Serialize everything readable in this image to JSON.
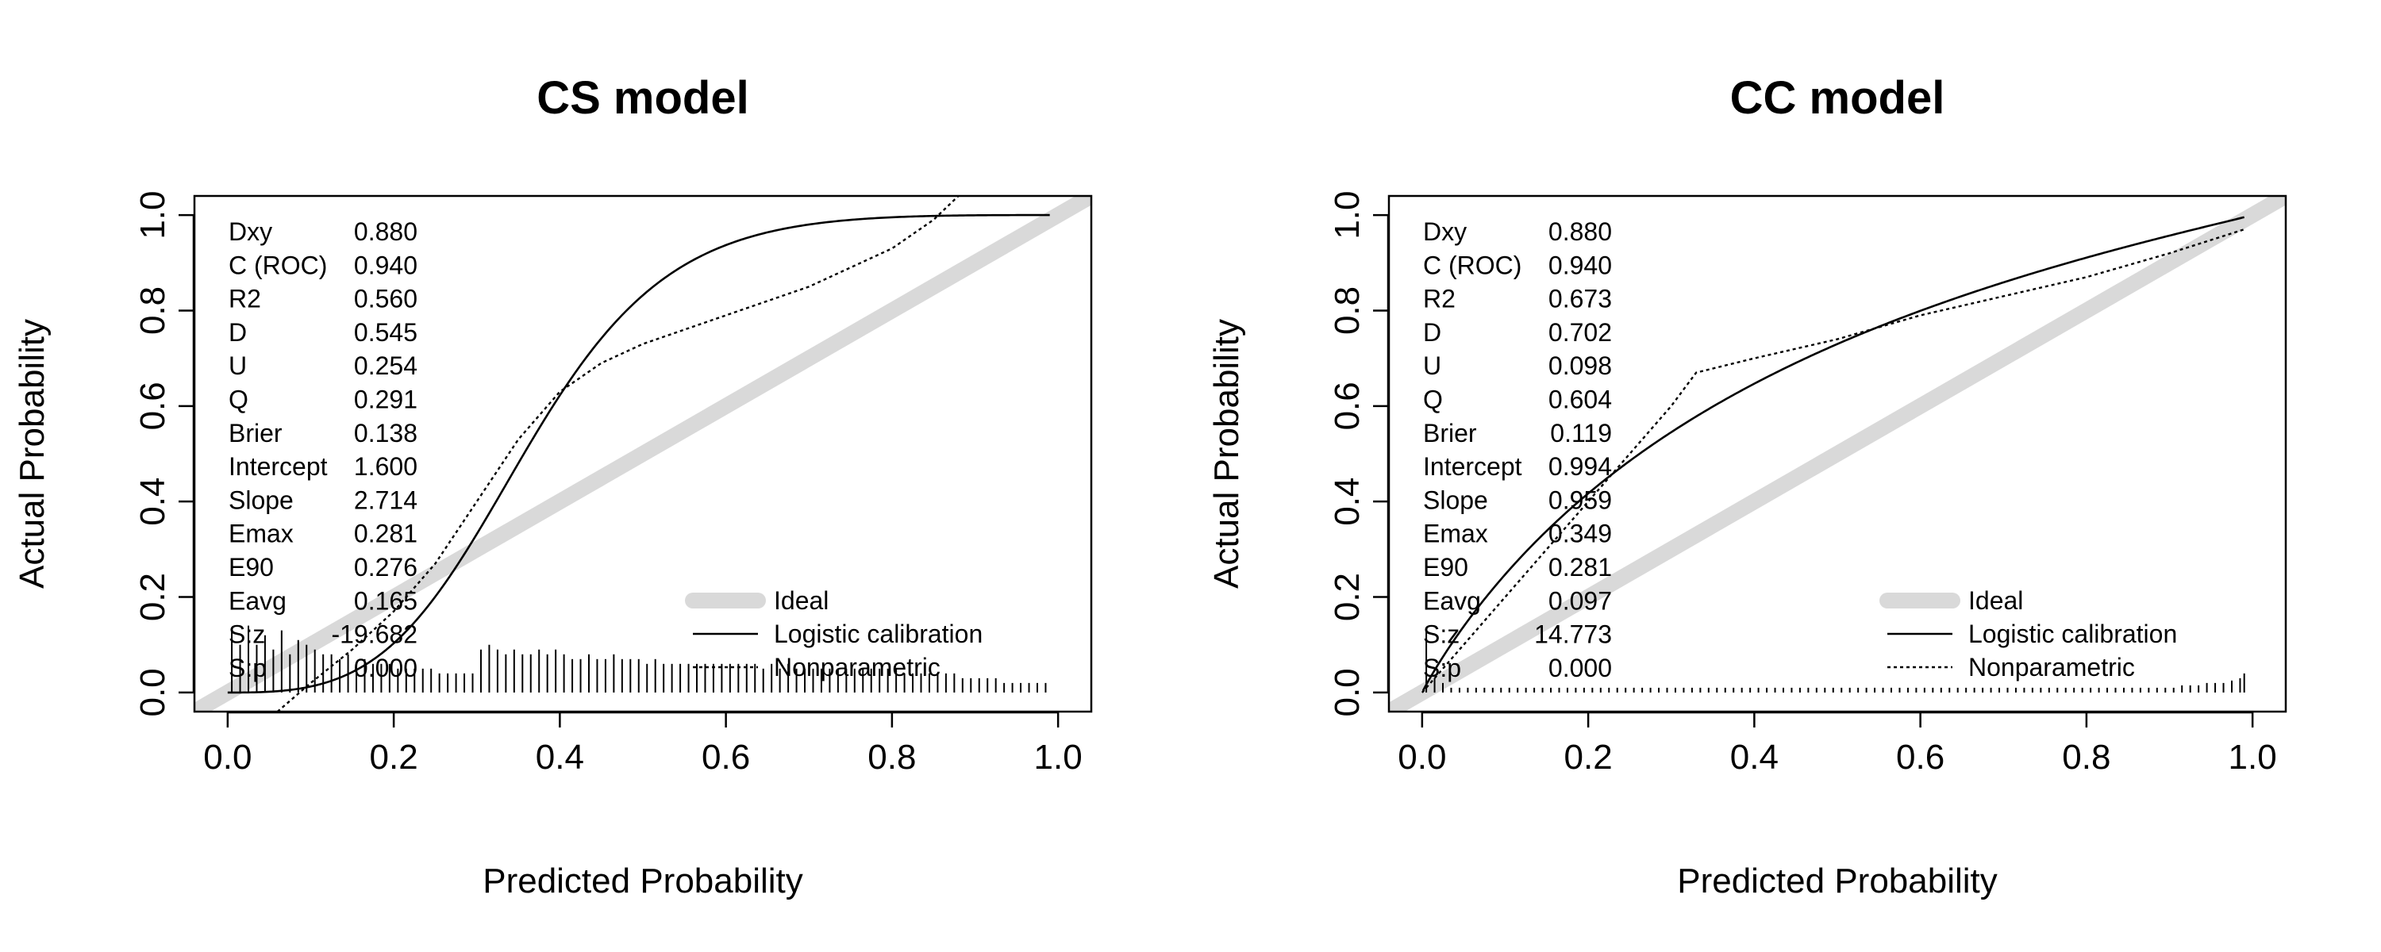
{
  "chart_data": [
    {
      "type": "line",
      "title": "CS model",
      "xlabel": "Predicted Probability",
      "ylabel": "Actual Probability",
      "xlim": [
        -0.04,
        1.04
      ],
      "ylim": [
        -0.04,
        1.04
      ],
      "xticks": [
        "0.0",
        "0.2",
        "0.4",
        "0.6",
        "0.8",
        "1.0"
      ],
      "yticks": [
        "0.0",
        "0.2",
        "0.4",
        "0.6",
        "0.8",
        "1.0"
      ],
      "stats": [
        {
          "label": "Dxy",
          "value": "0.880"
        },
        {
          "label": "C (ROC)",
          "value": "0.940"
        },
        {
          "label": "R2",
          "value": "0.560"
        },
        {
          "label": "D",
          "value": "0.545"
        },
        {
          "label": "U",
          "value": "0.254"
        },
        {
          "label": "Q",
          "value": "0.291"
        },
        {
          "label": "Brier",
          "value": "0.138"
        },
        {
          "label": "Intercept",
          "value": "1.600"
        },
        {
          "label": "Slope",
          "value": "2.714"
        },
        {
          "label": "Emax",
          "value": "0.281"
        },
        {
          "label": "E90",
          "value": "0.276"
        },
        {
          "label": "Eavg",
          "value": "0.165"
        },
        {
          "label": "S:z",
          "value": "-19.682"
        },
        {
          "label": "S:p",
          "value": "0.000"
        }
      ],
      "legend": {
        "position": "bottom-right",
        "items": [
          {
            "label": "Ideal",
            "style": "thick-gray"
          },
          {
            "label": "Logistic calibration",
            "style": "solid"
          },
          {
            "label": "Nonparametric",
            "style": "dotted"
          }
        ]
      },
      "series": [
        {
          "name": "Ideal",
          "x": [
            -0.04,
            1.04
          ],
          "y": [
            -0.04,
            1.04
          ]
        },
        {
          "name": "Logistic calibration",
          "logistic": {
            "intercept": 1.6,
            "slope": 2.714
          },
          "x_range": [
            0.0,
            0.99
          ]
        },
        {
          "name": "Nonparametric",
          "x": [
            0.06,
            0.1,
            0.15,
            0.2,
            0.25,
            0.3,
            0.35,
            0.4,
            0.45,
            0.5,
            0.55,
            0.6,
            0.65,
            0.7,
            0.75,
            0.8,
            0.85,
            0.88
          ],
          "y": [
            -0.04,
            0.02,
            0.09,
            0.17,
            0.27,
            0.4,
            0.53,
            0.63,
            0.69,
            0.73,
            0.76,
            0.79,
            0.82,
            0.85,
            0.89,
            0.93,
            0.99,
            1.04
          ]
        }
      ],
      "rug": {
        "x": [
          0.005,
          0.015,
          0.025,
          0.035,
          0.045,
          0.055,
          0.065,
          0.075,
          0.085,
          0.095,
          0.105,
          0.115,
          0.125,
          0.135,
          0.145,
          0.155,
          0.165,
          0.175,
          0.185,
          0.195,
          0.205,
          0.215,
          0.225,
          0.235,
          0.245,
          0.255,
          0.265,
          0.275,
          0.285,
          0.295,
          0.305,
          0.315,
          0.325,
          0.335,
          0.345,
          0.355,
          0.365,
          0.375,
          0.385,
          0.395,
          0.405,
          0.415,
          0.425,
          0.435,
          0.445,
          0.455,
          0.465,
          0.475,
          0.485,
          0.495,
          0.505,
          0.515,
          0.525,
          0.535,
          0.545,
          0.555,
          0.565,
          0.575,
          0.585,
          0.595,
          0.605,
          0.615,
          0.625,
          0.635,
          0.645,
          0.655,
          0.665,
          0.675,
          0.685,
          0.695,
          0.705,
          0.715,
          0.725,
          0.735,
          0.745,
          0.755,
          0.765,
          0.775,
          0.785,
          0.795,
          0.805,
          0.815,
          0.825,
          0.835,
          0.845,
          0.855,
          0.865,
          0.875,
          0.885,
          0.895,
          0.905,
          0.915,
          0.925,
          0.935,
          0.945,
          0.955,
          0.965,
          0.975,
          0.985
        ],
        "h": [
          0.13,
          0.1,
          0.14,
          0.1,
          0.12,
          0.09,
          0.13,
          0.08,
          0.11,
          0.1,
          0.09,
          0.08,
          0.08,
          0.07,
          0.08,
          0.06,
          0.07,
          0.06,
          0.06,
          0.06,
          0.05,
          0.05,
          0.05,
          0.05,
          0.05,
          0.04,
          0.04,
          0.04,
          0.04,
          0.04,
          0.09,
          0.1,
          0.09,
          0.08,
          0.09,
          0.08,
          0.08,
          0.09,
          0.08,
          0.09,
          0.08,
          0.07,
          0.07,
          0.08,
          0.07,
          0.07,
          0.08,
          0.07,
          0.07,
          0.07,
          0.06,
          0.07,
          0.06,
          0.06,
          0.06,
          0.06,
          0.06,
          0.06,
          0.06,
          0.06,
          0.06,
          0.06,
          0.06,
          0.06,
          0.05,
          0.06,
          0.05,
          0.06,
          0.05,
          0.05,
          0.05,
          0.05,
          0.05,
          0.05,
          0.05,
          0.05,
          0.05,
          0.05,
          0.05,
          0.05,
          0.05,
          0.04,
          0.04,
          0.04,
          0.04,
          0.04,
          0.04,
          0.04,
          0.03,
          0.03,
          0.03,
          0.03,
          0.03,
          0.02,
          0.02,
          0.02,
          0.02,
          0.02,
          0.02
        ]
      }
    },
    {
      "type": "line",
      "title": "CC model",
      "xlabel": "Predicted Probability",
      "ylabel": "Actual Probability",
      "xlim": [
        -0.04,
        1.04
      ],
      "ylim": [
        -0.04,
        1.04
      ],
      "xticks": [
        "0.0",
        "0.2",
        "0.4",
        "0.6",
        "0.8",
        "1.0"
      ],
      "yticks": [
        "0.0",
        "0.2",
        "0.4",
        "0.6",
        "0.8",
        "1.0"
      ],
      "stats": [
        {
          "label": "Dxy",
          "value": "0.880"
        },
        {
          "label": "C (ROC)",
          "value": "0.940"
        },
        {
          "label": "R2",
          "value": "0.673"
        },
        {
          "label": "D",
          "value": "0.702"
        },
        {
          "label": "U",
          "value": "0.098"
        },
        {
          "label": "Q",
          "value": "0.604"
        },
        {
          "label": "Brier",
          "value": "0.119"
        },
        {
          "label": "Intercept",
          "value": "0.994"
        },
        {
          "label": "Slope",
          "value": "0.959"
        },
        {
          "label": "Emax",
          "value": "0.349"
        },
        {
          "label": "E90",
          "value": "0.281"
        },
        {
          "label": "Eavg",
          "value": "0.097"
        },
        {
          "label": "S:z",
          "value": "14.773"
        },
        {
          "label": "S:p",
          "value": "0.000"
        }
      ],
      "legend": {
        "position": "bottom-right",
        "items": [
          {
            "label": "Ideal",
            "style": "thick-gray"
          },
          {
            "label": "Logistic calibration",
            "style": "solid"
          },
          {
            "label": "Nonparametric",
            "style": "dotted"
          }
        ]
      },
      "series": [
        {
          "name": "Ideal",
          "x": [
            -0.04,
            1.04
          ],
          "y": [
            -0.04,
            1.04
          ]
        },
        {
          "name": "Logistic calibration",
          "logistic": {
            "intercept": 0.994,
            "slope": 0.959
          },
          "x_range": [
            0.001,
            0.99
          ]
        },
        {
          "name": "Nonparametric",
          "x": [
            0.0,
            0.02,
            0.05,
            0.1,
            0.15,
            0.2,
            0.25,
            0.3,
            0.33,
            0.4,
            0.5,
            0.6,
            0.7,
            0.8,
            0.9,
            0.99
          ],
          "y": [
            0.0,
            0.04,
            0.1,
            0.2,
            0.3,
            0.4,
            0.5,
            0.6,
            0.67,
            0.7,
            0.74,
            0.79,
            0.83,
            0.87,
            0.92,
            0.97
          ]
        }
      ],
      "rug": {
        "x": [
          0.005,
          0.015,
          0.025,
          0.035,
          0.045,
          0.055,
          0.065,
          0.075,
          0.085,
          0.095,
          0.105,
          0.115,
          0.125,
          0.135,
          0.145,
          0.155,
          0.165,
          0.175,
          0.185,
          0.195,
          0.205,
          0.215,
          0.225,
          0.235,
          0.245,
          0.255,
          0.265,
          0.275,
          0.285,
          0.295,
          0.305,
          0.315,
          0.325,
          0.335,
          0.345,
          0.355,
          0.365,
          0.375,
          0.385,
          0.395,
          0.405,
          0.415,
          0.425,
          0.435,
          0.445,
          0.455,
          0.465,
          0.475,
          0.485,
          0.495,
          0.505,
          0.515,
          0.525,
          0.535,
          0.545,
          0.555,
          0.565,
          0.575,
          0.585,
          0.595,
          0.605,
          0.615,
          0.625,
          0.635,
          0.645,
          0.655,
          0.665,
          0.675,
          0.685,
          0.695,
          0.705,
          0.715,
          0.725,
          0.735,
          0.745,
          0.755,
          0.765,
          0.775,
          0.785,
          0.795,
          0.805,
          0.815,
          0.825,
          0.835,
          0.845,
          0.855,
          0.865,
          0.875,
          0.885,
          0.895,
          0.905,
          0.915,
          0.925,
          0.935,
          0.945,
          0.955,
          0.965,
          0.975,
          0.985,
          0.99
        ],
        "h": [
          0.13,
          0.03,
          0.02,
          0.01,
          0.01,
          0.01,
          0.01,
          0.01,
          0.01,
          0.01,
          0.01,
          0.01,
          0.01,
          0.01,
          0.01,
          0.01,
          0.01,
          0.01,
          0.01,
          0.01,
          0.01,
          0.01,
          0.01,
          0.01,
          0.01,
          0.01,
          0.01,
          0.01,
          0.01,
          0.01,
          0.01,
          0.01,
          0.01,
          0.01,
          0.01,
          0.01,
          0.01,
          0.01,
          0.01,
          0.01,
          0.01,
          0.01,
          0.01,
          0.01,
          0.01,
          0.01,
          0.01,
          0.01,
          0.01,
          0.01,
          0.01,
          0.01,
          0.01,
          0.01,
          0.01,
          0.01,
          0.01,
          0.01,
          0.01,
          0.01,
          0.01,
          0.01,
          0.01,
          0.01,
          0.01,
          0.01,
          0.01,
          0.01,
          0.01,
          0.01,
          0.01,
          0.01,
          0.01,
          0.01,
          0.01,
          0.01,
          0.01,
          0.01,
          0.01,
          0.01,
          0.01,
          0.01,
          0.01,
          0.01,
          0.01,
          0.01,
          0.01,
          0.01,
          0.01,
          0.01,
          0.01,
          0.015,
          0.015,
          0.015,
          0.02,
          0.02,
          0.02,
          0.025,
          0.03,
          0.04
        ]
      }
    }
  ]
}
